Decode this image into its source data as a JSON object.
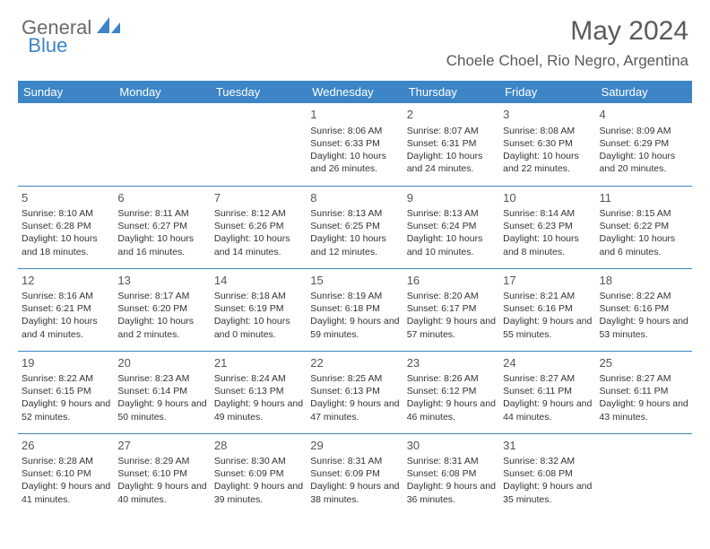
{
  "brand": {
    "part1": "General",
    "part2": "Blue"
  },
  "title": "May 2024",
  "location": "Choele Choel, Rio Negro, Argentina",
  "colors": {
    "accent": "#3d85c6",
    "header_text": "#ffffff",
    "body_text": "#333333",
    "muted_text": "#5a5a5a",
    "background": "#ffffff"
  },
  "weekdays": [
    "Sunday",
    "Monday",
    "Tuesday",
    "Wednesday",
    "Thursday",
    "Friday",
    "Saturday"
  ],
  "weeks": [
    [
      null,
      null,
      null,
      {
        "n": "1",
        "sr": "8:06 AM",
        "ss": "6:33 PM",
        "dl": "10 hours and 26 minutes."
      },
      {
        "n": "2",
        "sr": "8:07 AM",
        "ss": "6:31 PM",
        "dl": "10 hours and 24 minutes."
      },
      {
        "n": "3",
        "sr": "8:08 AM",
        "ss": "6:30 PM",
        "dl": "10 hours and 22 minutes."
      },
      {
        "n": "4",
        "sr": "8:09 AM",
        "ss": "6:29 PM",
        "dl": "10 hours and 20 minutes."
      }
    ],
    [
      {
        "n": "5",
        "sr": "8:10 AM",
        "ss": "6:28 PM",
        "dl": "10 hours and 18 minutes."
      },
      {
        "n": "6",
        "sr": "8:11 AM",
        "ss": "6:27 PM",
        "dl": "10 hours and 16 minutes."
      },
      {
        "n": "7",
        "sr": "8:12 AM",
        "ss": "6:26 PM",
        "dl": "10 hours and 14 minutes."
      },
      {
        "n": "8",
        "sr": "8:13 AM",
        "ss": "6:25 PM",
        "dl": "10 hours and 12 minutes."
      },
      {
        "n": "9",
        "sr": "8:13 AM",
        "ss": "6:24 PM",
        "dl": "10 hours and 10 minutes."
      },
      {
        "n": "10",
        "sr": "8:14 AM",
        "ss": "6:23 PM",
        "dl": "10 hours and 8 minutes."
      },
      {
        "n": "11",
        "sr": "8:15 AM",
        "ss": "6:22 PM",
        "dl": "10 hours and 6 minutes."
      }
    ],
    [
      {
        "n": "12",
        "sr": "8:16 AM",
        "ss": "6:21 PM",
        "dl": "10 hours and 4 minutes."
      },
      {
        "n": "13",
        "sr": "8:17 AM",
        "ss": "6:20 PM",
        "dl": "10 hours and 2 minutes."
      },
      {
        "n": "14",
        "sr": "8:18 AM",
        "ss": "6:19 PM",
        "dl": "10 hours and 0 minutes."
      },
      {
        "n": "15",
        "sr": "8:19 AM",
        "ss": "6:18 PM",
        "dl": "9 hours and 59 minutes."
      },
      {
        "n": "16",
        "sr": "8:20 AM",
        "ss": "6:17 PM",
        "dl": "9 hours and 57 minutes."
      },
      {
        "n": "17",
        "sr": "8:21 AM",
        "ss": "6:16 PM",
        "dl": "9 hours and 55 minutes."
      },
      {
        "n": "18",
        "sr": "8:22 AM",
        "ss": "6:16 PM",
        "dl": "9 hours and 53 minutes."
      }
    ],
    [
      {
        "n": "19",
        "sr": "8:22 AM",
        "ss": "6:15 PM",
        "dl": "9 hours and 52 minutes."
      },
      {
        "n": "20",
        "sr": "8:23 AM",
        "ss": "6:14 PM",
        "dl": "9 hours and 50 minutes."
      },
      {
        "n": "21",
        "sr": "8:24 AM",
        "ss": "6:13 PM",
        "dl": "9 hours and 49 minutes."
      },
      {
        "n": "22",
        "sr": "8:25 AM",
        "ss": "6:13 PM",
        "dl": "9 hours and 47 minutes."
      },
      {
        "n": "23",
        "sr": "8:26 AM",
        "ss": "6:12 PM",
        "dl": "9 hours and 46 minutes."
      },
      {
        "n": "24",
        "sr": "8:27 AM",
        "ss": "6:11 PM",
        "dl": "9 hours and 44 minutes."
      },
      {
        "n": "25",
        "sr": "8:27 AM",
        "ss": "6:11 PM",
        "dl": "9 hours and 43 minutes."
      }
    ],
    [
      {
        "n": "26",
        "sr": "8:28 AM",
        "ss": "6:10 PM",
        "dl": "9 hours and 41 minutes."
      },
      {
        "n": "27",
        "sr": "8:29 AM",
        "ss": "6:10 PM",
        "dl": "9 hours and 40 minutes."
      },
      {
        "n": "28",
        "sr": "8:30 AM",
        "ss": "6:09 PM",
        "dl": "9 hours and 39 minutes."
      },
      {
        "n": "29",
        "sr": "8:31 AM",
        "ss": "6:09 PM",
        "dl": "9 hours and 38 minutes."
      },
      {
        "n": "30",
        "sr": "8:31 AM",
        "ss": "6:08 PM",
        "dl": "9 hours and 36 minutes."
      },
      {
        "n": "31",
        "sr": "8:32 AM",
        "ss": "6:08 PM",
        "dl": "9 hours and 35 minutes."
      },
      null
    ]
  ],
  "labels": {
    "sunrise": "Sunrise:",
    "sunset": "Sunset:",
    "daylight": "Daylight:"
  }
}
